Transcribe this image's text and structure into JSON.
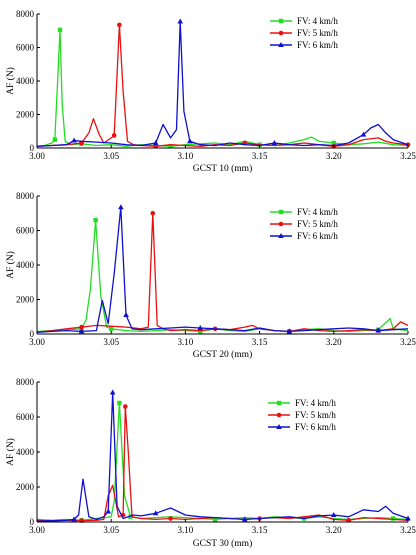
{
  "colors": {
    "s4": "#22dd22",
    "s5": "#e81010",
    "s6": "#1010d0",
    "axis": "#000000"
  },
  "chart_data": [
    {
      "type": "line",
      "xlabel": "GCST 10 (mm)",
      "ylabel": "AF (N)",
      "xlim": [
        3.0,
        3.25
      ],
      "ylim": [
        0,
        8000
      ],
      "xticks": [
        "3.00",
        "3.05",
        "3.10",
        "3.15",
        "3.20",
        "3.25"
      ],
      "yticks": [
        "0",
        "2000",
        "4000",
        "6000",
        "8000"
      ],
      "legend_position": "top-right",
      "series": [
        {
          "name": "FV: 4 km/h",
          "marker": "square",
          "x": [
            3.0,
            3.005,
            3.01,
            3.012,
            3.014,
            3.0155,
            3.017,
            3.019,
            3.022,
            3.03,
            3.04,
            3.05,
            3.06,
            3.07,
            3.08,
            3.09,
            3.1,
            3.11,
            3.12,
            3.13,
            3.14,
            3.15,
            3.16,
            3.17,
            3.18,
            3.185,
            3.19,
            3.2,
            3.21,
            3.22,
            3.23,
            3.24,
            3.25
          ],
          "y": [
            100,
            150,
            300,
            500,
            4200,
            7050,
            2600,
            400,
            200,
            250,
            150,
            200,
            100,
            200,
            150,
            100,
            200,
            250,
            300,
            200,
            400,
            200,
            150,
            300,
            500,
            650,
            400,
            300,
            200,
            250,
            350,
            200,
            150
          ]
        },
        {
          "name": "FV: 5 km/h",
          "marker": "circle",
          "x": [
            3.0,
            3.01,
            3.02,
            3.03,
            3.035,
            3.038,
            3.042,
            3.045,
            3.05,
            3.052,
            3.0555,
            3.058,
            3.061,
            3.065,
            3.07,
            3.08,
            3.09,
            3.1,
            3.11,
            3.12,
            3.13,
            3.14,
            3.15,
            3.16,
            3.17,
            3.18,
            3.19,
            3.2,
            3.21,
            3.22,
            3.23,
            3.235,
            3.24,
            3.25
          ],
          "y": [
            100,
            150,
            200,
            300,
            900,
            1750,
            800,
            300,
            600,
            750,
            7350,
            3400,
            400,
            200,
            150,
            100,
            200,
            150,
            100,
            200,
            150,
            300,
            200,
            150,
            200,
            300,
            200,
            100,
            200,
            500,
            600,
            400,
            300,
            200
          ]
        },
        {
          "name": "FV: 6 km/h",
          "marker": "triangle",
          "x": [
            3.0,
            3.01,
            3.02,
            3.025,
            3.03,
            3.04,
            3.05,
            3.06,
            3.07,
            3.08,
            3.085,
            3.09,
            3.094,
            3.0965,
            3.099,
            3.103,
            3.11,
            3.12,
            3.13,
            3.14,
            3.15,
            3.16,
            3.17,
            3.18,
            3.19,
            3.2,
            3.21,
            3.22,
            3.225,
            3.23,
            3.235,
            3.24,
            3.25
          ],
          "y": [
            100,
            150,
            200,
            450,
            400,
            350,
            300,
            200,
            150,
            300,
            1400,
            600,
            1100,
            7550,
            2200,
            400,
            200,
            150,
            300,
            200,
            150,
            300,
            200,
            150,
            200,
            150,
            300,
            800,
            1200,
            1400,
            900,
            500,
            200
          ]
        }
      ]
    },
    {
      "type": "line",
      "xlabel": "GCST 20 (mm)",
      "ylabel": "AF (N)",
      "xlim": [
        3.0,
        3.25
      ],
      "ylim": [
        0,
        8000
      ],
      "xticks": [
        "3.00",
        "3.05",
        "3.10",
        "3.15",
        "3.20",
        "3.25"
      ],
      "yticks": [
        "0",
        "2000",
        "4000",
        "6000",
        "8000"
      ],
      "legend_position": "top-right",
      "series": [
        {
          "name": "FV: 4 km/h",
          "marker": "square",
          "x": [
            3.0,
            3.01,
            3.02,
            3.03,
            3.033,
            3.036,
            3.0395,
            3.043,
            3.047,
            3.05,
            3.06,
            3.07,
            3.08,
            3.09,
            3.1,
            3.11,
            3.12,
            3.13,
            3.14,
            3.15,
            3.16,
            3.17,
            3.18,
            3.19,
            3.2,
            3.21,
            3.22,
            3.23,
            3.238,
            3.24,
            3.25
          ],
          "y": [
            150,
            200,
            250,
            300,
            800,
            2600,
            6600,
            2200,
            400,
            300,
            200,
            150,
            200,
            250,
            200,
            150,
            300,
            200,
            150,
            300,
            200,
            150,
            250,
            300,
            200,
            150,
            200,
            250,
            900,
            300,
            200
          ]
        },
        {
          "name": "FV: 5 km/h",
          "marker": "circle",
          "x": [
            3.0,
            3.01,
            3.02,
            3.03,
            3.04,
            3.05,
            3.06,
            3.07,
            3.075,
            3.078,
            3.081,
            3.085,
            3.09,
            3.1,
            3.11,
            3.12,
            3.13,
            3.14,
            3.145,
            3.15,
            3.16,
            3.17,
            3.18,
            3.19,
            3.2,
            3.21,
            3.22,
            3.23,
            3.24,
            3.245,
            3.25
          ],
          "y": [
            100,
            200,
            300,
            400,
            500,
            450,
            400,
            300,
            400,
            7000,
            500,
            300,
            200,
            250,
            200,
            300,
            250,
            400,
            500,
            300,
            200,
            150,
            300,
            200,
            150,
            200,
            250,
            200,
            300,
            700,
            500
          ]
        },
        {
          "name": "FV: 6 km/h",
          "marker": "triangle",
          "x": [
            3.0,
            3.01,
            3.02,
            3.03,
            3.04,
            3.044,
            3.048,
            3.052,
            3.0565,
            3.06,
            3.064,
            3.07,
            3.08,
            3.09,
            3.1,
            3.11,
            3.12,
            3.13,
            3.14,
            3.15,
            3.16,
            3.17,
            3.18,
            3.19,
            3.2,
            3.21,
            3.22,
            3.23,
            3.24,
            3.25
          ],
          "y": [
            100,
            150,
            200,
            150,
            200,
            1950,
            600,
            3500,
            7350,
            1100,
            300,
            250,
            300,
            350,
            400,
            350,
            300,
            250,
            200,
            350,
            200,
            150,
            200,
            250,
            300,
            350,
            300,
            200,
            250,
            300
          ]
        }
      ]
    },
    {
      "type": "line",
      "xlabel": "GCST 30 (mm)",
      "ylabel": "AF (N)",
      "xlim": [
        3.0,
        3.25
      ],
      "ylim": [
        0,
        8000
      ],
      "xticks": [
        "3.00",
        "3.05",
        "3.10",
        "3.15",
        "3.20",
        "3.25"
      ],
      "yticks": [
        "0",
        "2000",
        "4000",
        "6000",
        "8000"
      ],
      "legend_position": "top-right",
      "series": [
        {
          "name": "FV: 4 km/h",
          "marker": "square",
          "x": [
            3.0,
            3.01,
            3.02,
            3.03,
            3.04,
            3.05,
            3.052,
            3.0555,
            3.059,
            3.063,
            3.07,
            3.08,
            3.09,
            3.1,
            3.11,
            3.12,
            3.13,
            3.14,
            3.15,
            3.16,
            3.17,
            3.18,
            3.19,
            3.2,
            3.21,
            3.22,
            3.23,
            3.24,
            3.25
          ],
          "y": [
            150,
            100,
            150,
            100,
            200,
            300,
            1200,
            6800,
            1500,
            300,
            200,
            250,
            300,
            250,
            200,
            150,
            200,
            250,
            200,
            300,
            250,
            200,
            300,
            200,
            150,
            200,
            250,
            200,
            150
          ]
        },
        {
          "name": "FV: 5 km/h",
          "marker": "circle",
          "x": [
            3.0,
            3.01,
            3.02,
            3.03,
            3.04,
            3.045,
            3.048,
            3.051,
            3.055,
            3.058,
            3.0595,
            3.0615,
            3.064,
            3.07,
            3.08,
            3.09,
            3.1,
            3.11,
            3.12,
            3.13,
            3.14,
            3.15,
            3.16,
            3.17,
            3.18,
            3.19,
            3.2,
            3.21,
            3.22,
            3.23,
            3.24,
            3.25
          ],
          "y": [
            100,
            50,
            100,
            80,
            100,
            150,
            1500,
            2100,
            300,
            400,
            6600,
            4000,
            300,
            200,
            150,
            200,
            150,
            200,
            250,
            200,
            150,
            200,
            250,
            200,
            300,
            400,
            150,
            100,
            250,
            200,
            150,
            100
          ]
        },
        {
          "name": "FV: 6 km/h",
          "marker": "triangle",
          "x": [
            3.0,
            3.01,
            3.02,
            3.025,
            3.028,
            3.031,
            3.035,
            3.04,
            3.045,
            3.048,
            3.051,
            3.054,
            3.058,
            3.065,
            3.07,
            3.08,
            3.09,
            3.1,
            3.11,
            3.12,
            3.13,
            3.14,
            3.15,
            3.16,
            3.17,
            3.18,
            3.19,
            3.2,
            3.21,
            3.22,
            3.23,
            3.235,
            3.24,
            3.25
          ],
          "y": [
            50,
            80,
            100,
            150,
            400,
            2450,
            300,
            150,
            300,
            600,
            7400,
            900,
            200,
            400,
            350,
            500,
            800,
            400,
            300,
            250,
            200,
            150,
            200,
            250,
            300,
            200,
            350,
            400,
            300,
            700,
            600,
            900,
            500,
            200
          ]
        }
      ]
    }
  ]
}
